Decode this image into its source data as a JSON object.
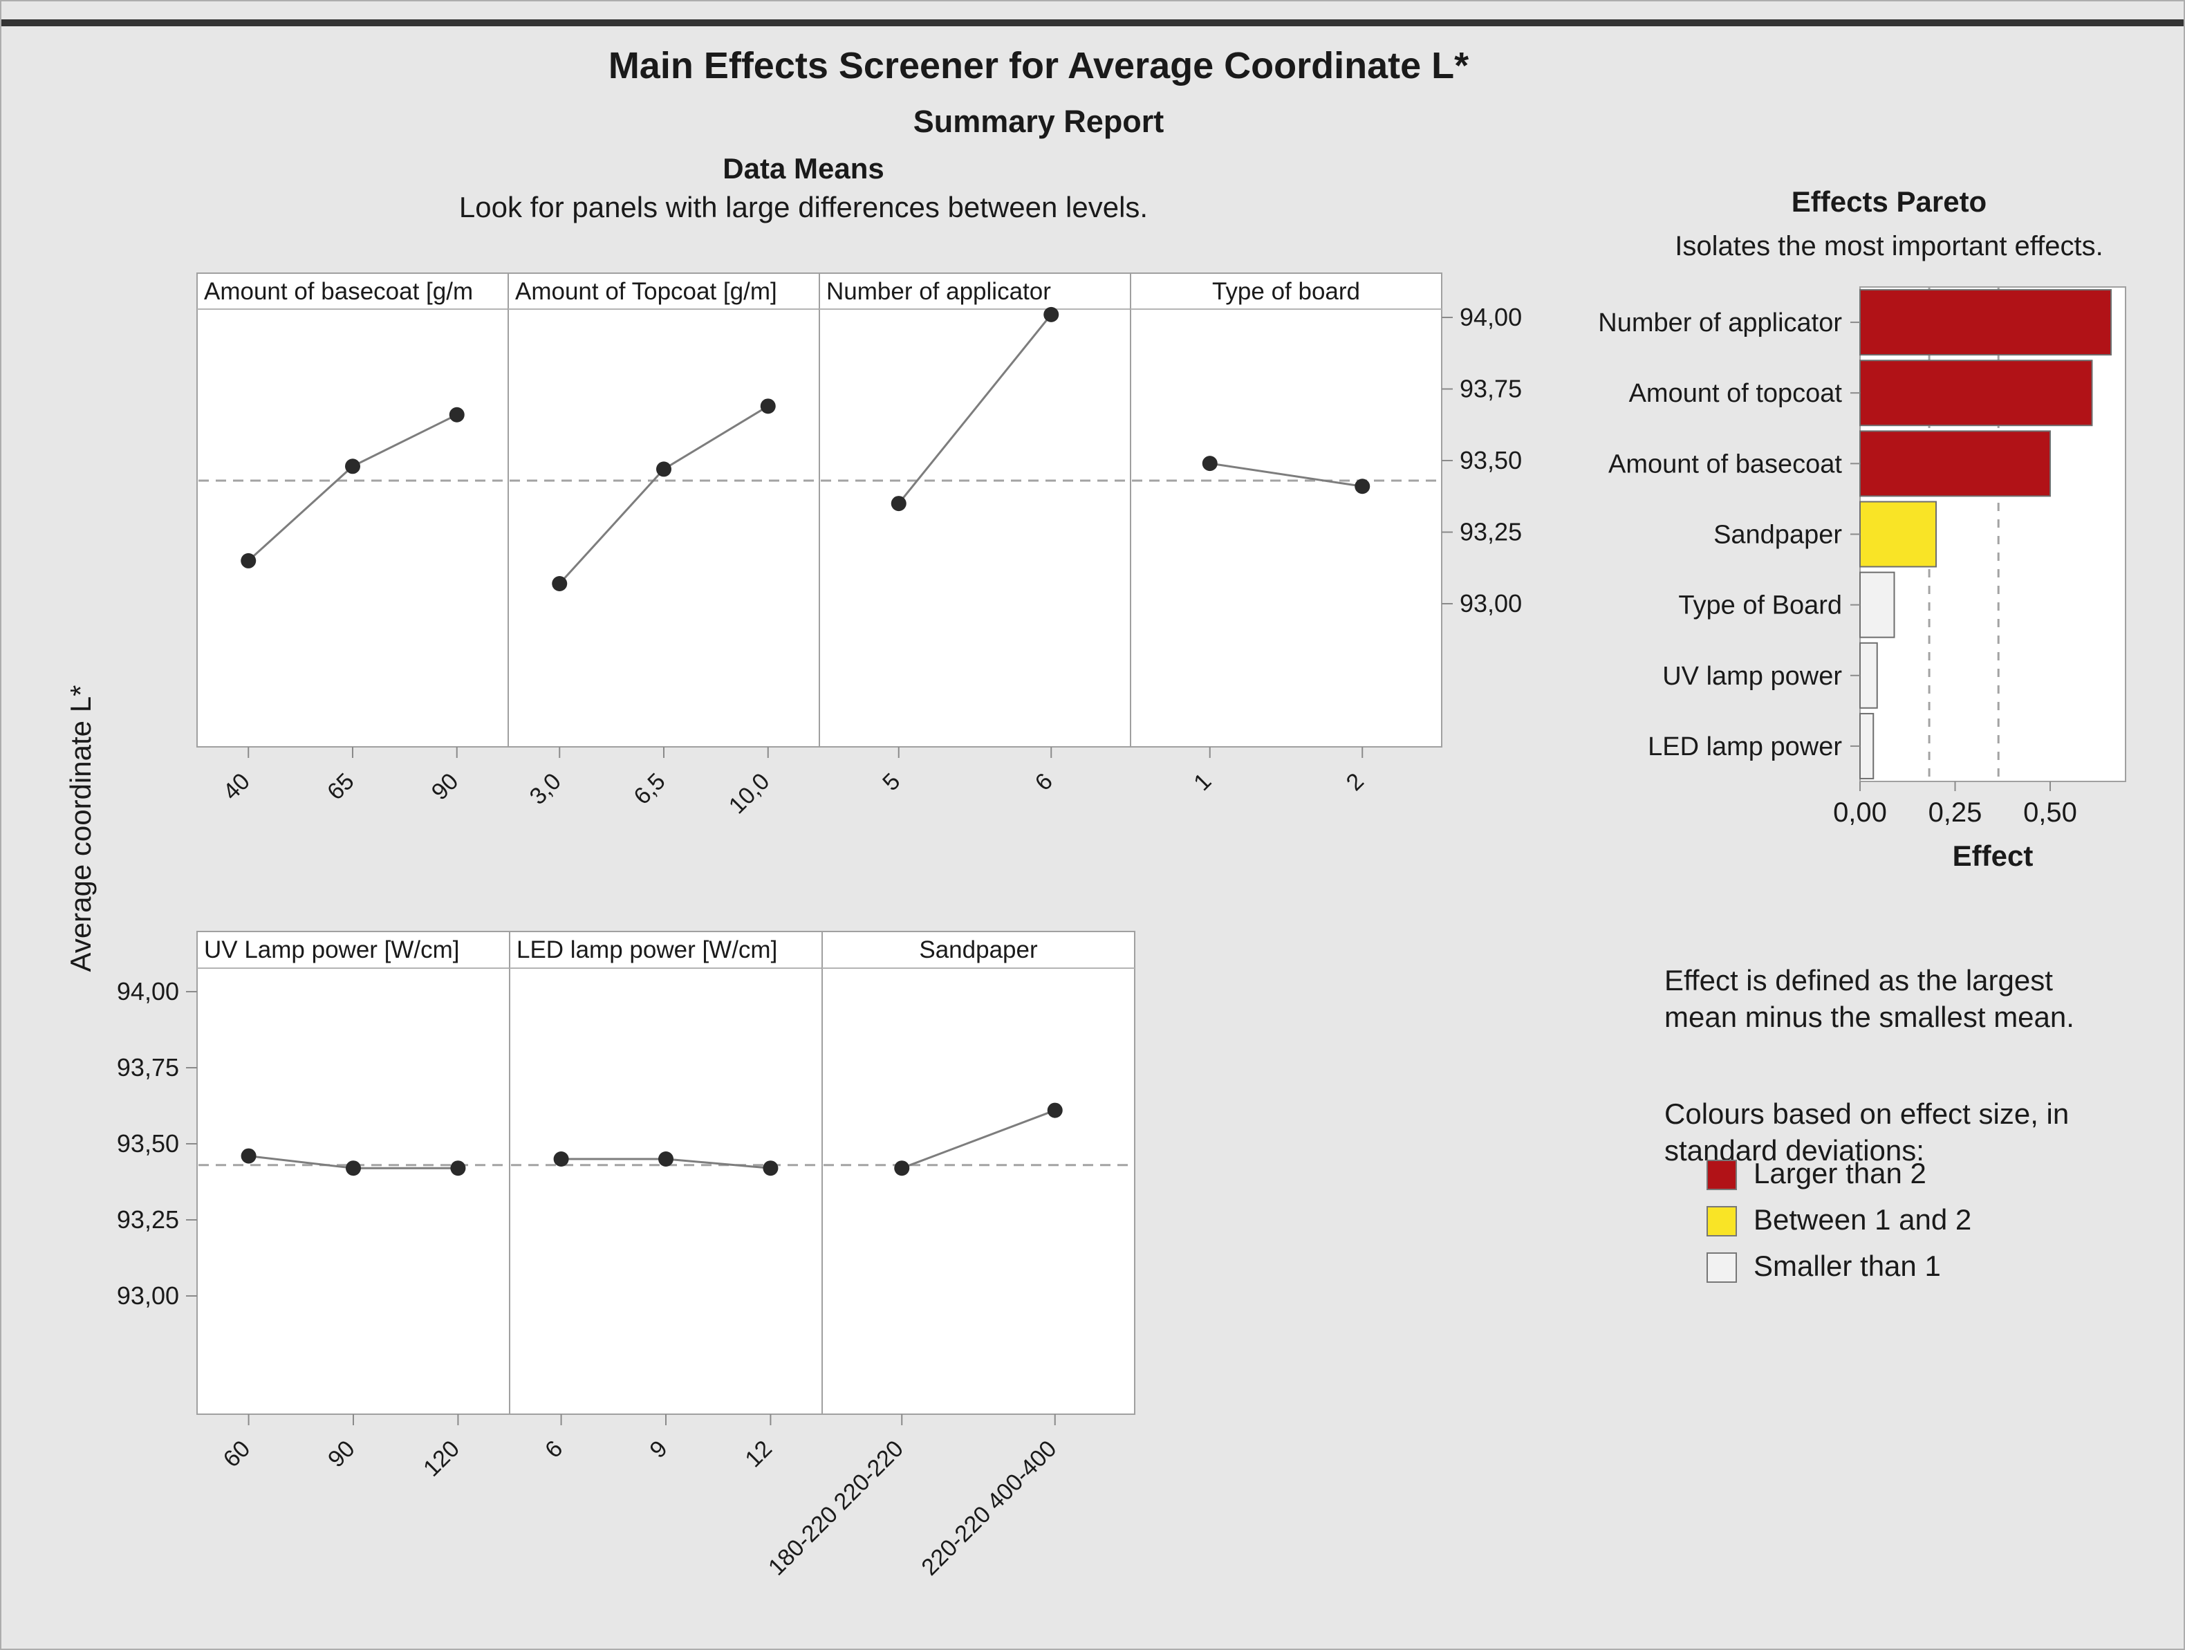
{
  "page": {
    "title": "Main Effects Screener for Average Coordinate L*",
    "subtitle": "Summary Report",
    "section_title": "Data Means",
    "section_note": "Look for panels with large differences between levels.",
    "y_axis_title": "Average coordinate L*"
  },
  "colors": {
    "background": "#e7e7e7",
    "panel_bg": "#ffffff",
    "panel_border": "#a0a0a0",
    "header_divider": "#b4b4b4",
    "point": "#2a2a2a",
    "line": "#7d7d7d",
    "mean_line": "#a3a3a3",
    "tick": "#8a8a8a",
    "pareto_red": "#b11217",
    "pareto_yellow": "#f9e426",
    "pareto_white": "#f2f2f2",
    "bar_border": "#6e6e6e",
    "text": "#1a1a1a"
  },
  "chart_data": [
    {
      "type": "line",
      "title": "Data Means",
      "subtitle": "Look for panels with large differences between levels.",
      "ylabel": "Average coordinate L*",
      "y_ticks": [
        "94,00",
        "93,75",
        "93,50",
        "93,25",
        "93,00"
      ],
      "y_tick_values": [
        94.0,
        93.75,
        93.5,
        93.25,
        93.0
      ],
      "ylim": [
        92.6,
        94.05
      ],
      "grand_mean": 93.43,
      "grid": false,
      "rows": [
        {
          "panels": [
            {
              "label": "Amount of basecoat [g/m",
              "levels": [
                "40",
                "65",
                "90"
              ],
              "values": [
                93.15,
                93.48,
                93.66
              ]
            },
            {
              "label": "Amount of Topcoat [g/m]",
              "levels": [
                "3,0",
                "6,5",
                "10,0"
              ],
              "values": [
                93.07,
                93.47,
                93.69
              ]
            },
            {
              "label": "Number of applicator",
              "levels": [
                "5",
                "6"
              ],
              "values": [
                93.35,
                94.01
              ]
            },
            {
              "label": "Type of board",
              "levels": [
                "1",
                "2"
              ],
              "values": [
                93.49,
                93.41
              ]
            }
          ]
        },
        {
          "panels": [
            {
              "label": "UV Lamp power [W/cm]",
              "levels": [
                "60",
                "90",
                "120"
              ],
              "values": [
                93.46,
                93.42,
                93.42
              ]
            },
            {
              "label": "LED lamp power [W/cm]",
              "levels": [
                "6",
                "9",
                "12"
              ],
              "values": [
                93.45,
                93.45,
                93.42
              ]
            },
            {
              "label": "Sandpaper",
              "levels": [
                "180-220 220-220",
                "220-220 400-400"
              ],
              "values": [
                93.42,
                93.61
              ]
            }
          ]
        }
      ]
    },
    {
      "type": "bar",
      "title": "Effects Pareto",
      "subtitle": "Isolates the most important effects.",
      "xlabel": "Effect",
      "categories": [
        "Number of applicator",
        "Amount of topcoat",
        "Amount of basecoat",
        "Sandpaper",
        "Type of Board",
        "UV lamp power",
        "LED lamp power"
      ],
      "values": [
        0.66,
        0.61,
        0.5,
        0.2,
        0.09,
        0.045,
        0.035
      ],
      "bar_colors": [
        "red",
        "red",
        "red",
        "yellow",
        "white",
        "white",
        "white"
      ],
      "x_ticks": [
        "0,00",
        "0,25",
        "0,50"
      ],
      "x_tick_values": [
        0,
        0.25,
        0.5
      ],
      "xlim": [
        0,
        0.7
      ],
      "reference_lines": [
        0.182,
        0.364
      ],
      "legend_position": "below-right",
      "note_lines": [
        "Effect is defined as the largest",
        "mean minus the smallest mean."
      ]
    }
  ],
  "legend": {
    "heading_lines": [
      "Colours based on effect size, in",
      "standard deviations:"
    ],
    "items": [
      {
        "label": "Larger than 2",
        "color_key": "red"
      },
      {
        "label": "Between 1 and 2",
        "color_key": "yellow"
      },
      {
        "label": "Smaller than 1",
        "color_key": "white"
      }
    ]
  }
}
